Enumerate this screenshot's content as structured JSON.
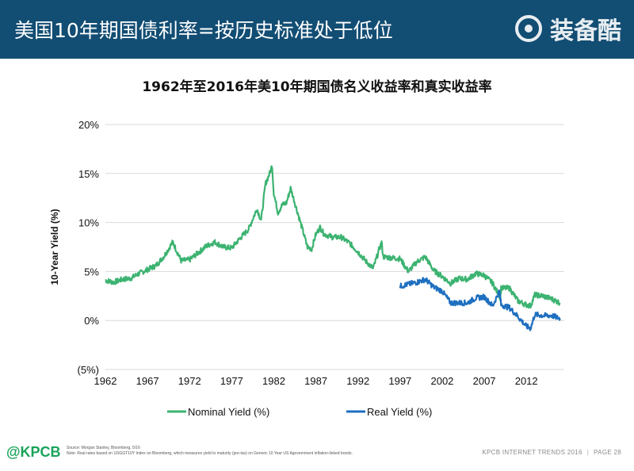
{
  "header": {
    "title": "美国10年期国债利率=按历史标准处于低位",
    "brand": "装备酷"
  },
  "chart_data": {
    "type": "line",
    "title": "1962年至2016年美10年期国债名义收益率和真实收益率",
    "xlabel": "",
    "ylabel": "10-Year Yield (%)",
    "xlim": [
      1962,
      2016.5
    ],
    "ylim": [
      -5,
      20
    ],
    "x_ticks": [
      "1962",
      "1967",
      "1972",
      "1977",
      "1982",
      "1987",
      "1992",
      "1997",
      "2002",
      "2007",
      "2012"
    ],
    "y_ticks": [
      "20%",
      "15%",
      "10%",
      "5%",
      "0%",
      "(5%)"
    ],
    "grid": "horizontal",
    "legend_position": "bottom",
    "series": [
      {
        "name": "Nominal Yield (%)",
        "color": "#3cb371",
        "x": [
          1962,
          1963,
          1964,
          1965,
          1966,
          1967,
          1968,
          1969,
          1970,
          1971,
          1972,
          1973,
          1974,
          1975,
          1976,
          1977,
          1978,
          1979,
          1980,
          1980.5,
          1981,
          1981.5,
          1981.8,
          1982,
          1982.5,
          1983,
          1983.5,
          1984,
          1984.5,
          1985,
          1986,
          1986.5,
          1987,
          1987.5,
          1988,
          1989,
          1990,
          1991,
          1992,
          1993,
          1993.8,
          1994.8,
          1995,
          1996,
          1997,
          1998,
          1999,
          2000,
          2001,
          2002,
          2003,
          2004,
          2005,
          2006,
          2007,
          2008,
          2008.9,
          2009,
          2010,
          2011,
          2012,
          2012.5,
          2013,
          2014,
          2015,
          2016
        ],
        "y": [
          4.1,
          3.9,
          4.2,
          4.3,
          4.8,
          5.2,
          5.6,
          6.6,
          8.0,
          6.1,
          6.2,
          6.9,
          7.6,
          8.0,
          7.5,
          7.4,
          8.4,
          9.3,
          11.4,
          10.2,
          13.9,
          15.0,
          15.8,
          13.0,
          11.0,
          11.8,
          12.0,
          13.5,
          12.0,
          10.5,
          7.5,
          7.3,
          8.8,
          9.5,
          8.8,
          8.5,
          8.5,
          7.9,
          7.0,
          6.0,
          5.3,
          8.0,
          6.5,
          6.4,
          6.3,
          5.0,
          6.0,
          6.5,
          5.1,
          4.5,
          3.8,
          4.3,
          4.2,
          4.8,
          4.6,
          3.8,
          2.3,
          3.3,
          3.3,
          2.0,
          1.6,
          1.5,
          2.6,
          2.5,
          2.2,
          1.8
        ]
      },
      {
        "name": "Real Yield (%)",
        "color": "#1e6fc0",
        "x": [
          1997,
          1998,
          1999,
          2000,
          2001,
          2002,
          2003,
          2004,
          2005,
          2006,
          2007,
          2008,
          2008.8,
          2009,
          2010,
          2011,
          2012,
          2012.5,
          2013,
          2014,
          2015,
          2016
        ],
        "y": [
          3.5,
          3.7,
          3.9,
          4.2,
          3.4,
          3.0,
          1.8,
          1.8,
          1.8,
          2.3,
          2.4,
          1.5,
          3.0,
          1.6,
          1.3,
          0.4,
          -0.6,
          -0.8,
          0.6,
          0.5,
          0.5,
          0.2
        ]
      }
    ]
  },
  "footer": {
    "logo": "@KPCB",
    "source": "Source: Morgan Stanley, Bloomberg, 5/16",
    "note": "Note: Real rates based on USGGT10Y Index on Bloomberg, which measures yield to maturity (pre-tax) on Generic 10 Year US Agovernment inflation-linked bonds.",
    "right_text": "KPCB INTERNET TRENDS 2016",
    "page": "PAGE 28"
  }
}
